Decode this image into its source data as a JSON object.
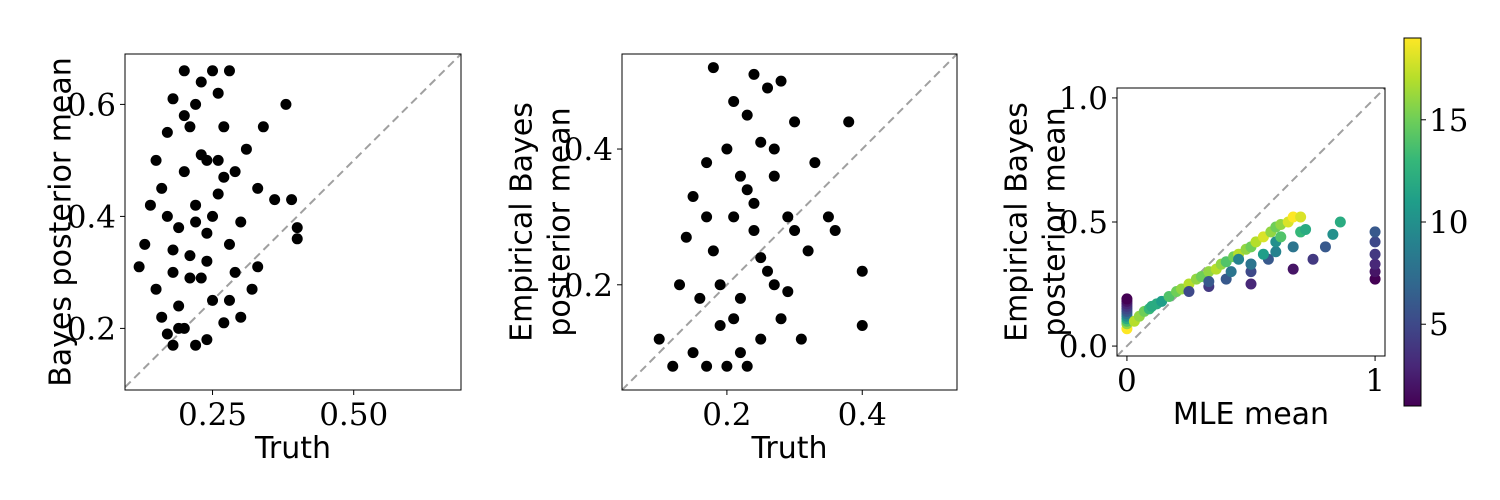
{
  "chart_data": [
    {
      "type": "scatter",
      "title": "",
      "xlabel": "Truth",
      "ylabel": [
        "Bayes posterior mean"
      ],
      "xlim": [
        0.095,
        0.69
      ],
      "ylim": [
        0.09,
        0.69
      ],
      "xticks": [
        0.25,
        0.5
      ],
      "xtick_labels": [
        "0.25",
        "0.50"
      ],
      "yticks": [
        0.2,
        0.4,
        0.6
      ],
      "ytick_labels": [
        "0.2",
        "0.4",
        "0.6"
      ],
      "color": "#000000",
      "reference_line": "y = x",
      "points": {
        "x": [
          0.12,
          0.13,
          0.14,
          0.15,
          0.15,
          0.16,
          0.16,
          0.17,
          0.17,
          0.18,
          0.18,
          0.18,
          0.19,
          0.19,
          0.2,
          0.2,
          0.2,
          0.21,
          0.21,
          0.22,
          0.22,
          0.22,
          0.23,
          0.23,
          0.24,
          0.24,
          0.24,
          0.25,
          0.25,
          0.26,
          0.26,
          0.27,
          0.27,
          0.28,
          0.28,
          0.29,
          0.29,
          0.3,
          0.31,
          0.32,
          0.33,
          0.34,
          0.36,
          0.39,
          0.4,
          0.4,
          0.38,
          0.2,
          0.23,
          0.26,
          0.18,
          0.3,
          0.22,
          0.25,
          0.27,
          0.17,
          0.21,
          0.24,
          0.28,
          0.19,
          0.33
        ],
        "y": [
          0.31,
          0.35,
          0.42,
          0.27,
          0.5,
          0.22,
          0.45,
          0.19,
          0.55,
          0.3,
          0.61,
          0.17,
          0.38,
          0.24,
          0.48,
          0.66,
          0.2,
          0.33,
          0.56,
          0.17,
          0.42,
          0.6,
          0.29,
          0.64,
          0.37,
          0.5,
          0.18,
          0.66,
          0.25,
          0.44,
          0.62,
          0.21,
          0.56,
          0.35,
          0.66,
          0.3,
          0.48,
          0.39,
          0.52,
          0.27,
          0.45,
          0.56,
          0.43,
          0.43,
          0.38,
          0.36,
          0.6,
          0.58,
          0.51,
          0.5,
          0.34,
          0.22,
          0.39,
          0.4,
          0.47,
          0.4,
          0.29,
          0.32,
          0.25,
          0.2,
          0.31
        ]
      }
    },
    {
      "type": "scatter",
      "title": "",
      "xlabel": "Truth",
      "ylabel": [
        "Empirical Bayes",
        "posterior mean"
      ],
      "xlim": [
        0.045,
        0.54
      ],
      "ylim": [
        0.045,
        0.54
      ],
      "xticks": [
        0.2,
        0.4
      ],
      "xtick_labels": [
        "0.2",
        "0.4"
      ],
      "yticks": [
        0.2,
        0.4
      ],
      "ytick_labels": [
        "0.2",
        "0.4"
      ],
      "color": "#000000",
      "reference_line": "y = x",
      "points": {
        "x": [
          0.1,
          0.12,
          0.13,
          0.14,
          0.15,
          0.15,
          0.16,
          0.17,
          0.17,
          0.18,
          0.18,
          0.19,
          0.2,
          0.2,
          0.21,
          0.21,
          0.22,
          0.22,
          0.23,
          0.23,
          0.24,
          0.24,
          0.25,
          0.25,
          0.26,
          0.27,
          0.27,
          0.28,
          0.29,
          0.3,
          0.31,
          0.32,
          0.33,
          0.35,
          0.36,
          0.38,
          0.4,
          0.4,
          0.19,
          0.24,
          0.26,
          0.28,
          0.22,
          0.3,
          0.17,
          0.25,
          0.21,
          0.27,
          0.23,
          0.29
        ],
        "y": [
          0.12,
          0.08,
          0.2,
          0.27,
          0.1,
          0.33,
          0.18,
          0.08,
          0.38,
          0.25,
          0.52,
          0.14,
          0.4,
          0.08,
          0.3,
          0.47,
          0.18,
          0.36,
          0.08,
          0.45,
          0.28,
          0.51,
          0.12,
          0.41,
          0.49,
          0.2,
          0.36,
          0.5,
          0.3,
          0.44,
          0.12,
          0.25,
          0.38,
          0.3,
          0.28,
          0.44,
          0.22,
          0.14,
          0.2,
          0.32,
          0.22,
          0.15,
          0.1,
          0.28,
          0.3,
          0.24,
          0.15,
          0.4,
          0.34,
          0.19
        ]
      }
    },
    {
      "type": "scatter",
      "title": "",
      "xlabel": "MLE mean",
      "ylabel": [
        "Empirical Bayes",
        "posterior mean"
      ],
      "xlim": [
        -0.04,
        1.04
      ],
      "ylim": [
        -0.04,
        1.04
      ],
      "xticks": [
        0,
        1
      ],
      "xtick_labels": [
        "0",
        "1"
      ],
      "yticks": [
        0.0,
        0.5,
        1.0
      ],
      "ytick_labels": [
        "0.0",
        "0.5",
        "1.0"
      ],
      "reference_line": "y = x",
      "colorbar": {
        "colormap": "viridis",
        "range": [
          1,
          19
        ],
        "ticks": [
          5,
          10,
          15
        ],
        "tick_labels": [
          "5",
          "10",
          "15"
        ]
      },
      "points": {
        "x": [
          0,
          0,
          0,
          0,
          0,
          0,
          0,
          0,
          0,
          0,
          0,
          0,
          0.03,
          0.05,
          0.07,
          0.09,
          0.1,
          0.12,
          0.14,
          0.17,
          0.2,
          0.22,
          0.25,
          0.28,
          0.3,
          0.33,
          0.36,
          0.38,
          0.4,
          0.43,
          0.45,
          0.48,
          0.5,
          0.52,
          0.55,
          0.58,
          0.6,
          0.62,
          0.65,
          0.67,
          0.7,
          0.25,
          0.33,
          0.4,
          0.5,
          0.5,
          0.5,
          0.57,
          0.6,
          0.67,
          0.67,
          0.75,
          0.8,
          0.83,
          0.86,
          0.5,
          0.55,
          0.6,
          0.62,
          0.7,
          0.72,
          1,
          1,
          1,
          1,
          1,
          1,
          0.33,
          0.42,
          0.45
        ],
        "y": [
          0.07,
          0.09,
          0.1,
          0.11,
          0.12,
          0.13,
          0.14,
          0.15,
          0.16,
          0.17,
          0.18,
          0.19,
          0.1,
          0.12,
          0.14,
          0.15,
          0.16,
          0.17,
          0.18,
          0.2,
          0.22,
          0.23,
          0.25,
          0.27,
          0.28,
          0.3,
          0.31,
          0.33,
          0.34,
          0.36,
          0.37,
          0.39,
          0.4,
          0.42,
          0.44,
          0.46,
          0.48,
          0.49,
          0.5,
          0.52,
          0.52,
          0.22,
          0.24,
          0.27,
          0.25,
          0.3,
          0.33,
          0.35,
          0.38,
          0.31,
          0.4,
          0.35,
          0.4,
          0.45,
          0.5,
          0.33,
          0.37,
          0.42,
          0.44,
          0.46,
          0.47,
          0.27,
          0.3,
          0.33,
          0.37,
          0.42,
          0.46,
          0.26,
          0.3,
          0.35
        ],
        "c": [
          19,
          16,
          14,
          12,
          10,
          8,
          6,
          5,
          4,
          3,
          2,
          1,
          17,
          16,
          15,
          13,
          12,
          12,
          11,
          14,
          15,
          16,
          17,
          16,
          15,
          16,
          17,
          16,
          14,
          15,
          17,
          16,
          15,
          17,
          18,
          16,
          15,
          16,
          18,
          19,
          18,
          5,
          4,
          6,
          3,
          5,
          7,
          6,
          9,
          2,
          8,
          4,
          6,
          10,
          12,
          8,
          11,
          10,
          14,
          13,
          12,
          1,
          2,
          3,
          4,
          5,
          6,
          6,
          8,
          9
        ]
      }
    }
  ]
}
